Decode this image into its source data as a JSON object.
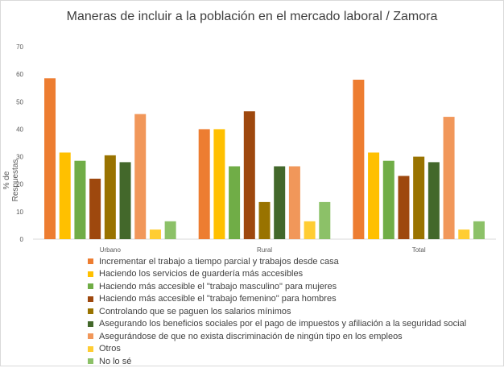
{
  "chart_data": {
    "type": "bar",
    "title": "Maneras de incluir a la población en el mercado laboral / Zamora",
    "ylabel": "% de Respuestas",
    "xlabel": "",
    "ylim": [
      0,
      70
    ],
    "yticks": [
      0,
      10,
      20,
      30,
      40,
      50,
      60,
      70
    ],
    "categories": [
      "Urbano",
      "Rural",
      "Total"
    ],
    "grid": false,
    "legend_position": "bottom",
    "series": [
      {
        "name": "Incrementar el trabajo a tiempo parcial y trabajos desde casa",
        "color": "#ED7D31",
        "values": [
          58.5,
          40,
          58
        ]
      },
      {
        "name": "Haciendo los servicios de guardería más accesibles",
        "color": "#FFC000",
        "values": [
          31.5,
          40,
          31.5
        ]
      },
      {
        "name": "Haciendo más accesible el \"trabajo masculino\" para mujeres",
        "color": "#70AD47",
        "values": [
          28.5,
          26.5,
          28.5
        ]
      },
      {
        "name": "Haciendo más accesible el \"trabajo femenino\" para hombres",
        "color": "#9E480E",
        "values": [
          22,
          46.5,
          23
        ]
      },
      {
        "name": "Controlando que se paguen los salarios mínimos",
        "color": "#997300",
        "values": [
          30.5,
          13.5,
          30
        ]
      },
      {
        "name": "Asegurando los beneficios sociales por el pago de impuestos y afiliación a la seguridad social",
        "color": "#43682B",
        "values": [
          28,
          26.5,
          28
        ]
      },
      {
        "name": "Asegurándose de que no exista discriminación de ningún tipo en los empleos",
        "color": "#F1975A",
        "values": [
          45.5,
          26.5,
          44.5
        ]
      },
      {
        "name": "Otros",
        "color": "#FFCD33",
        "values": [
          3.5,
          6.5,
          3.5
        ]
      },
      {
        "name": "No lo sé",
        "color": "#8CC168",
        "values": [
          6.5,
          13.5,
          6.5
        ]
      }
    ]
  }
}
